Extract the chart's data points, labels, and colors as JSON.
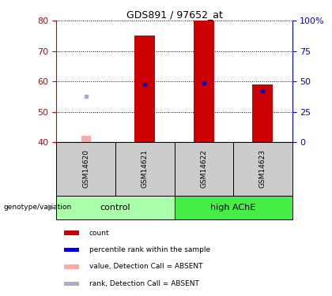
{
  "title": "GDS891 / 97652_at",
  "samples": [
    "GSM14620",
    "GSM14621",
    "GSM14622",
    "GSM14623"
  ],
  "group_labels": [
    "control",
    "high AChE"
  ],
  "ylim_left": [
    40,
    80
  ],
  "ylim_right": [
    0,
    100
  ],
  "yticks_left": [
    40,
    50,
    60,
    70,
    80
  ],
  "yticks_right": [
    0,
    25,
    50,
    75,
    100
  ],
  "yticklabels_right": [
    "0",
    "25",
    "50",
    "75",
    "100%"
  ],
  "red_bars": [
    null,
    75,
    80,
    59
  ],
  "pink_bars": [
    42,
    null,
    null,
    null
  ],
  "blue_squares": [
    null,
    59,
    59.5,
    57
  ],
  "lavender_squares": [
    55,
    null,
    null,
    null
  ],
  "red_color": "#cc0000",
  "pink_color": "#ffaaaa",
  "blue_color": "#0000cc",
  "lavender_color": "#aaaacc",
  "left_axis_color": "#cc0000",
  "right_axis_color": "#0000cc",
  "sample_box_color": "#cccccc",
  "control_group_color": "#aaffaa",
  "high_ache_group_color": "#44ee44",
  "legend_items": [
    {
      "color": "#cc0000",
      "label": "count"
    },
    {
      "color": "#0000cc",
      "label": "percentile rank within the sample"
    },
    {
      "color": "#ffaaaa",
      "label": "value, Detection Call = ABSENT"
    },
    {
      "color": "#aaaacc",
      "label": "rank, Detection Call = ABSENT"
    }
  ],
  "genotype_label": "genotype/variation",
  "arrow": "▶"
}
